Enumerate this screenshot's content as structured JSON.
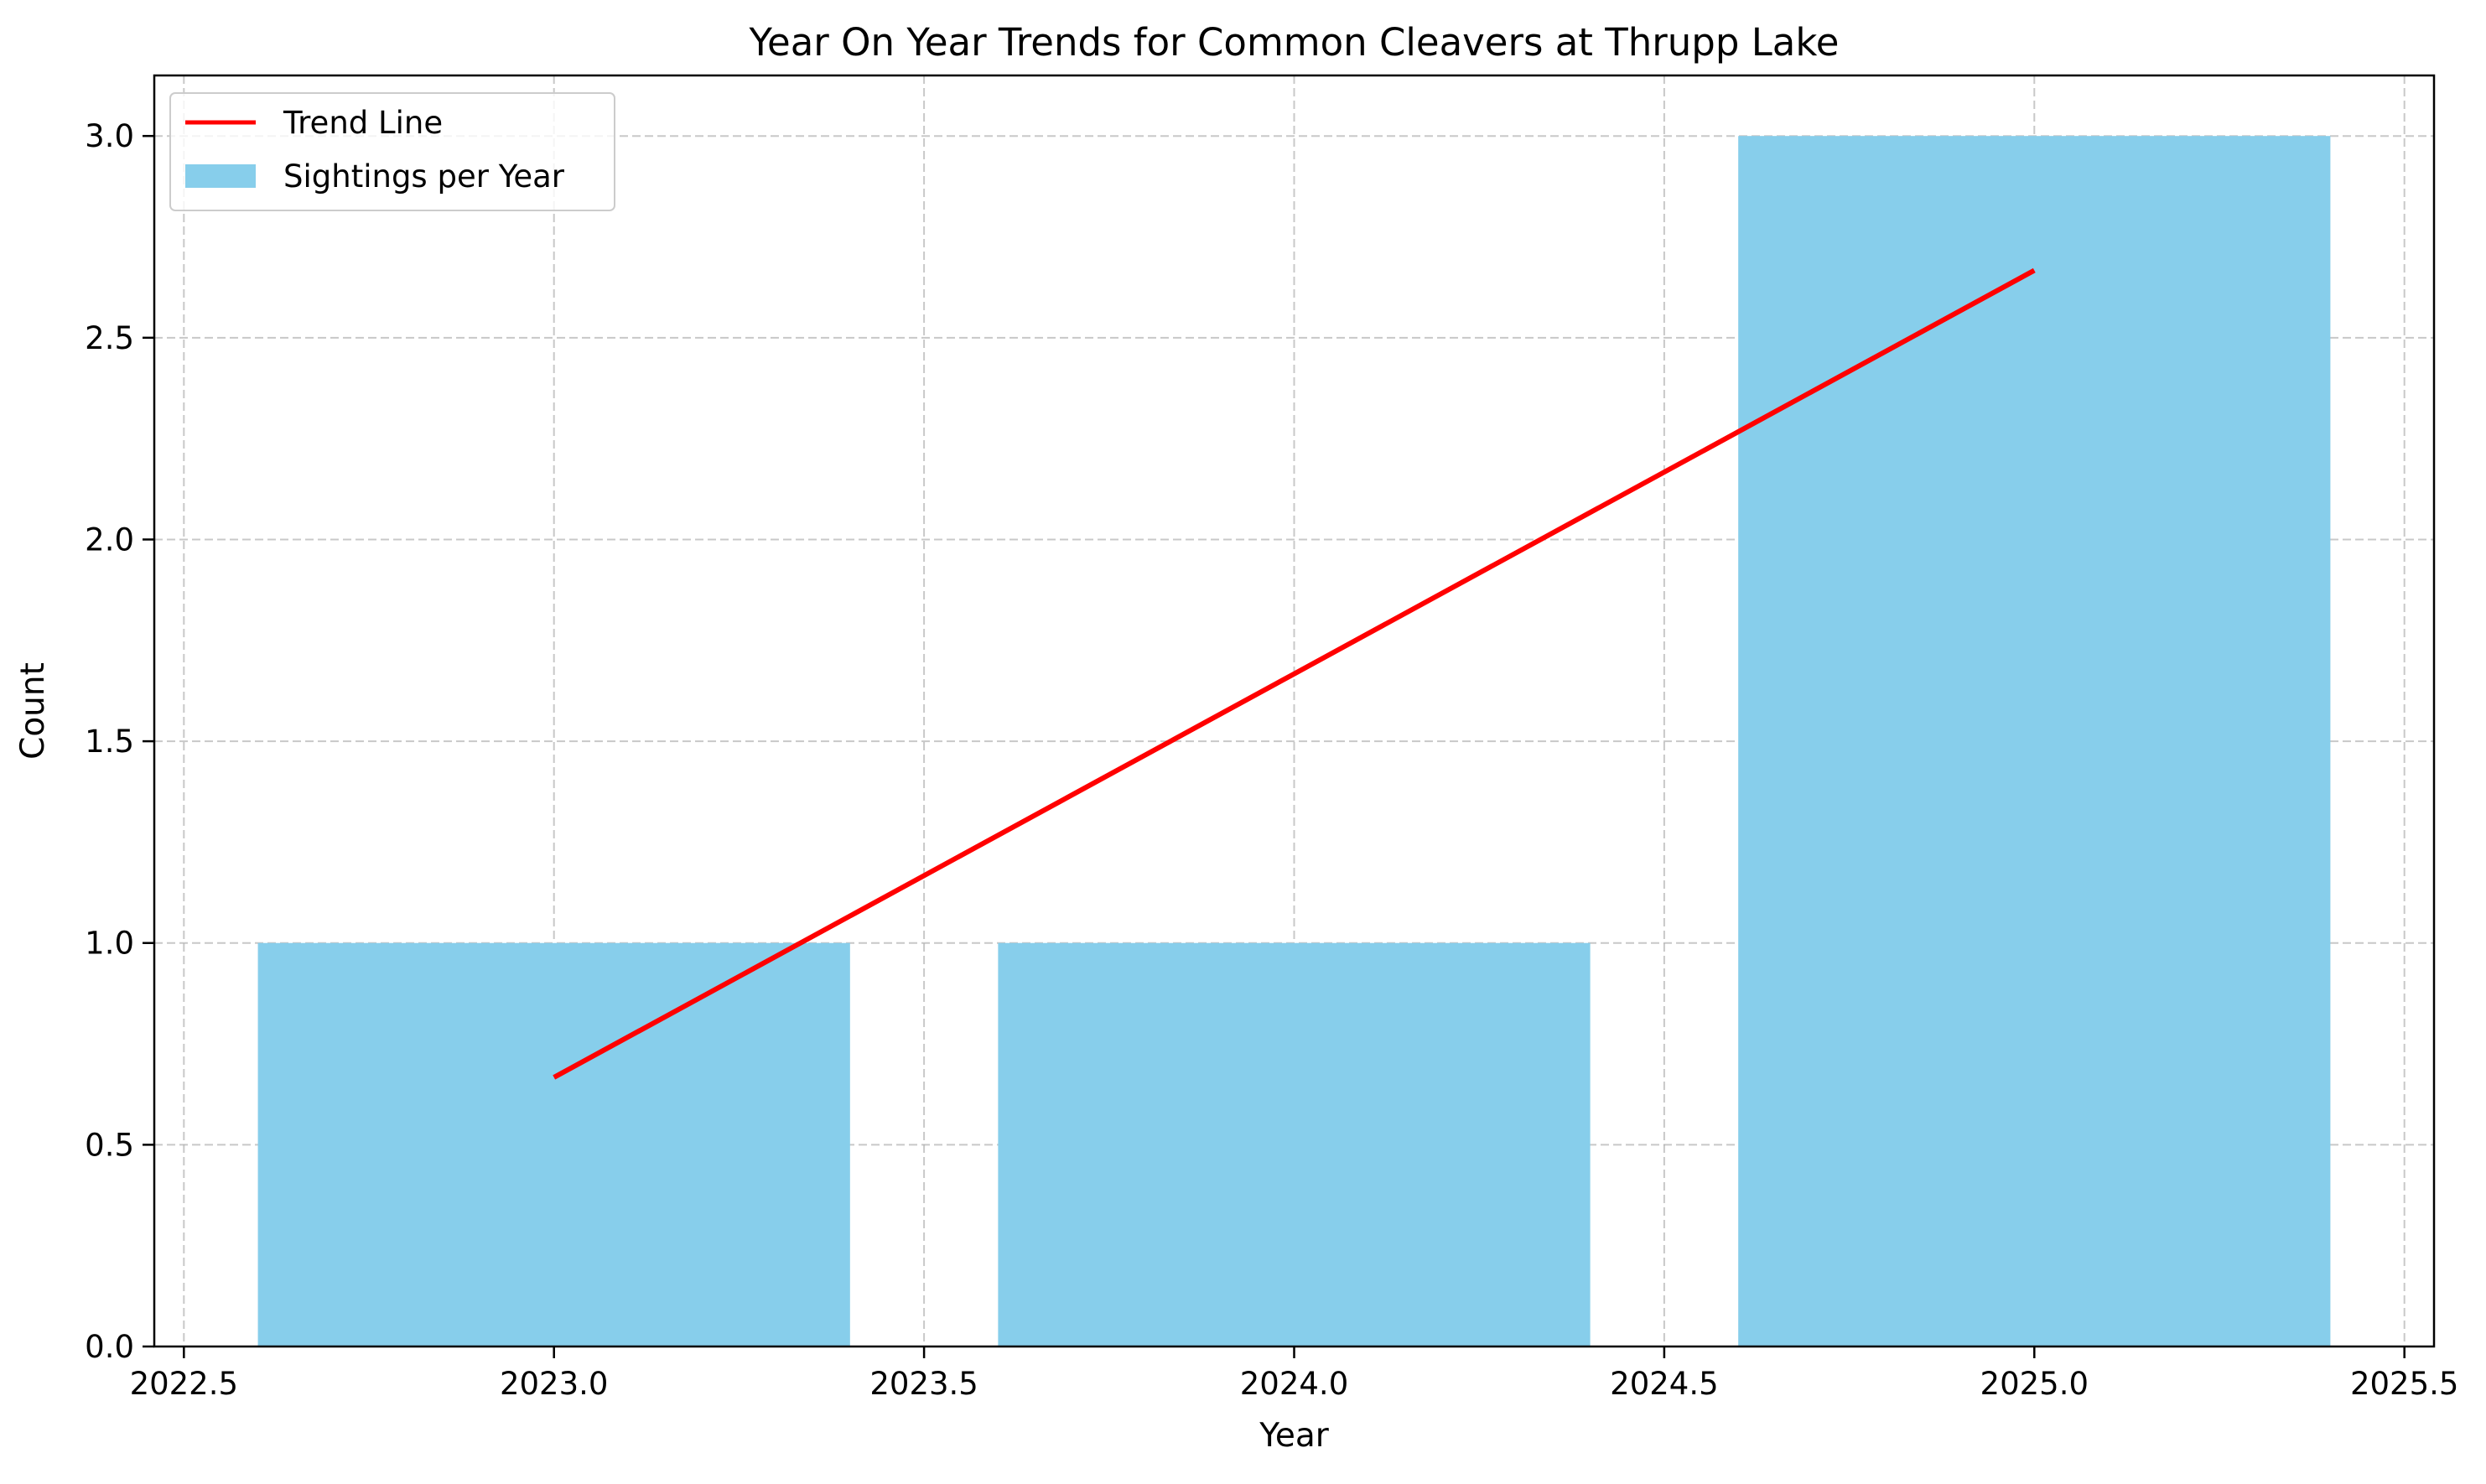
{
  "chart_data": {
    "type": "bar",
    "title": "Year On Year Trends for Common Cleavers at Thrupp Lake",
    "xlabel": "Year",
    "ylabel": "Count",
    "xlim": [
      2022.46,
      2025.54
    ],
    "ylim": [
      0,
      3.15
    ],
    "xticks": [
      2022.5,
      2023.0,
      2023.5,
      2024.0,
      2024.5,
      2025.0,
      2025.5
    ],
    "xtick_labels": [
      "2022.5",
      "2023.0",
      "2023.5",
      "2024.0",
      "2024.5",
      "2025.0",
      "2025.5"
    ],
    "yticks": [
      0,
      0.5,
      1.0,
      1.5,
      2.0,
      2.5,
      3.0
    ],
    "ytick_labels": [
      "0.0",
      "0.5",
      "1.0",
      "1.5",
      "2.0",
      "2.5",
      "3.0"
    ],
    "grid": true,
    "legend_position": "upper-left",
    "bars": {
      "name": "Sightings per Year",
      "x": [
        2023,
        2024,
        2025
      ],
      "values": [
        1,
        1,
        3
      ],
      "width": 0.8,
      "color": "#87CEEB"
    },
    "trend": {
      "name": "Trend Line",
      "x": [
        2023,
        2024,
        2025
      ],
      "y": [
        0.667,
        1.667,
        2.667
      ],
      "color": "#FF0000"
    }
  }
}
